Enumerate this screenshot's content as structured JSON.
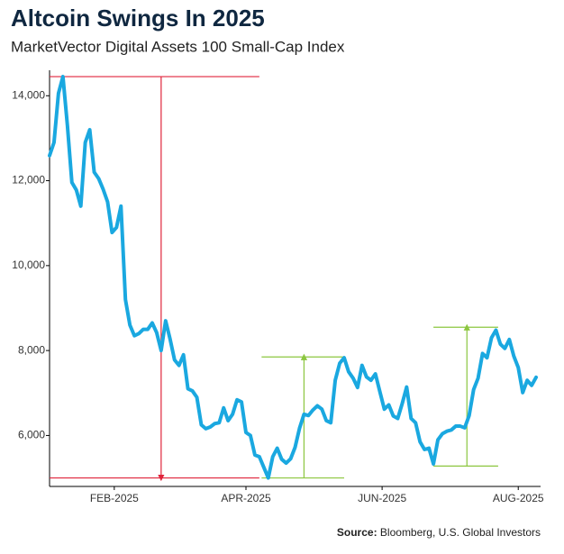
{
  "chart_data": {
    "type": "line",
    "title": "Altcoin Swings In 2025",
    "subtitle": "MarketVector Digital Assets 100 Small-Cap Index",
    "source_label": "Source:",
    "source": "Bloomberg, U.S. Global Investors",
    "xlim": [
      "2025-01-03",
      "2025-08-11"
    ],
    "xticks": [
      {
        "value": "2025-02-01",
        "label": "FEB-2025"
      },
      {
        "value": "2025-04-01",
        "label": "APR-2025"
      },
      {
        "value": "2025-06-01",
        "label": "JUN-2025"
      },
      {
        "value": "2025-08-01",
        "label": "AUG-2025"
      }
    ],
    "ylim": [
      4800,
      14600
    ],
    "yticks": [
      {
        "value": 6000,
        "label": "6,000"
      },
      {
        "value": 8000,
        "label": "8,000"
      },
      {
        "value": 10000,
        "label": "10,000"
      },
      {
        "value": 12000,
        "label": "12,000"
      },
      {
        "value": 14000,
        "label": "14,000"
      }
    ],
    "grid": false,
    "x": [
      "2025-01-03",
      "2025-01-05",
      "2025-01-07",
      "2025-01-09",
      "2025-01-11",
      "2025-01-13",
      "2025-01-15",
      "2025-01-17",
      "2025-01-19",
      "2025-01-21",
      "2025-01-23",
      "2025-01-25",
      "2025-01-27",
      "2025-01-29",
      "2025-01-31",
      "2025-02-02",
      "2025-02-04",
      "2025-02-06",
      "2025-02-08",
      "2025-02-10",
      "2025-02-12",
      "2025-02-14",
      "2025-02-16",
      "2025-02-18",
      "2025-02-20",
      "2025-02-22",
      "2025-02-24",
      "2025-02-26",
      "2025-02-28",
      "2025-03-02",
      "2025-03-04",
      "2025-03-06",
      "2025-03-08",
      "2025-03-10",
      "2025-03-12",
      "2025-03-14",
      "2025-03-16",
      "2025-03-18",
      "2025-03-20",
      "2025-03-22",
      "2025-03-24",
      "2025-03-26",
      "2025-03-28",
      "2025-03-30",
      "2025-04-01",
      "2025-04-03",
      "2025-04-05",
      "2025-04-07",
      "2025-04-09",
      "2025-04-11",
      "2025-04-13",
      "2025-04-15",
      "2025-04-17",
      "2025-04-19",
      "2025-04-21",
      "2025-04-23",
      "2025-04-25",
      "2025-04-27",
      "2025-04-29",
      "2025-05-01",
      "2025-05-03",
      "2025-05-05",
      "2025-05-07",
      "2025-05-09",
      "2025-05-11",
      "2025-05-13",
      "2025-05-15",
      "2025-05-17",
      "2025-05-19",
      "2025-05-21",
      "2025-05-23",
      "2025-05-25",
      "2025-05-27",
      "2025-05-29",
      "2025-05-31",
      "2025-06-02",
      "2025-06-04",
      "2025-06-06",
      "2025-06-08",
      "2025-06-10",
      "2025-06-12",
      "2025-06-14",
      "2025-06-16",
      "2025-06-18",
      "2025-06-20",
      "2025-06-22",
      "2025-06-24",
      "2025-06-26",
      "2025-06-28",
      "2025-06-30",
      "2025-07-02",
      "2025-07-04",
      "2025-07-06",
      "2025-07-08",
      "2025-07-10",
      "2025-07-12",
      "2025-07-14",
      "2025-07-16",
      "2025-07-18",
      "2025-07-20",
      "2025-07-22",
      "2025-07-24",
      "2025-07-26",
      "2025-07-28",
      "2025-07-30",
      "2025-08-01",
      "2025-08-03",
      "2025-08-05",
      "2025-08-07",
      "2025-08-09"
    ],
    "series": [
      {
        "name": "MarketVector Digital Assets 100 Small-Cap Index",
        "color": "#1aa8e0",
        "values": [
          12590,
          12900,
          14060,
          14450,
          13300,
          11960,
          11780,
          11400,
          12900,
          13200,
          12200,
          12050,
          11800,
          11500,
          10780,
          10900,
          11400,
          9200,
          8600,
          8350,
          8400,
          8500,
          8500,
          8650,
          8420,
          8000,
          8700,
          8270,
          7780,
          7650,
          7900,
          7100,
          7050,
          6900,
          6250,
          6160,
          6200,
          6280,
          6300,
          6650,
          6350,
          6500,
          6840,
          6790,
          6070,
          6000,
          5540,
          5500,
          5250,
          5000,
          5500,
          5700,
          5440,
          5350,
          5450,
          5720,
          6170,
          6500,
          6470,
          6600,
          6700,
          6620,
          6350,
          6300,
          7300,
          7700,
          7830,
          7500,
          7350,
          7130,
          7650,
          7380,
          7300,
          7450,
          7030,
          6620,
          6720,
          6460,
          6400,
          6750,
          7140,
          6400,
          6300,
          5850,
          5670,
          5700,
          5330,
          5900,
          6040,
          6100,
          6130,
          6220,
          6220,
          6180,
          6470,
          7080,
          7350,
          7930,
          7830,
          8300,
          8480,
          8150,
          8050,
          8260,
          7870,
          7600,
          7010,
          7300,
          7180,
          7370
        ]
      }
    ],
    "annotations": [
      {
        "color": "#e0243c",
        "x": [
          "2025-01-03",
          "2025-04-07"
        ],
        "arrow_x": "2025-02-22",
        "y": [
          14450,
          5000
        ]
      },
      {
        "color": "#8cc63f",
        "x": [
          "2025-04-08",
          "2025-05-15"
        ],
        "arrow_x": "2025-04-27",
        "y": [
          5000,
          7850
        ]
      },
      {
        "color": "#8cc63f",
        "x": [
          "2025-06-24",
          "2025-07-23"
        ],
        "arrow_x": "2025-07-09",
        "y": [
          5280,
          8550
        ]
      }
    ]
  }
}
